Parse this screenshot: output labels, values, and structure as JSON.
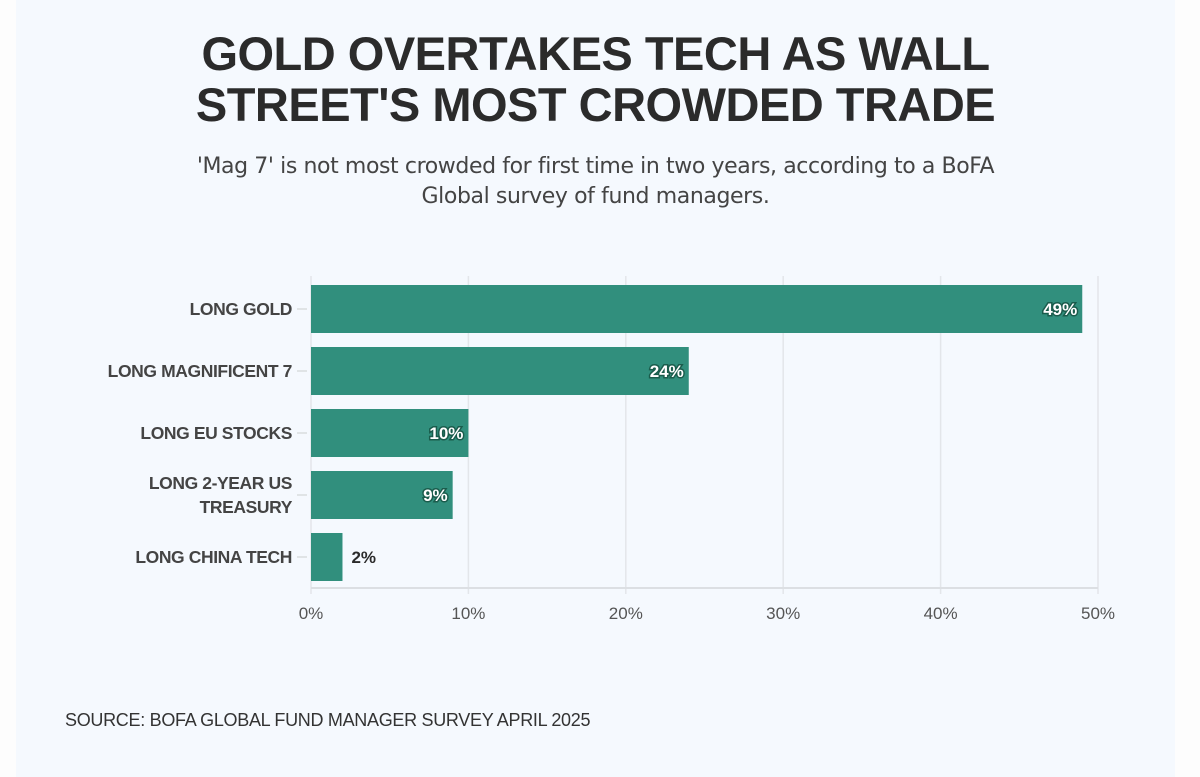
{
  "header": {
    "title_line1": "GOLD OVERTAKES TECH AS WALL",
    "title_line2": "STREET'S MOST CROWDED TRADE",
    "subtitle_line1": "'Mag 7' is not most crowded for first time in two years, according to a BoFA",
    "subtitle_line2": "Global survey of fund managers."
  },
  "footer": {
    "source": "SOURCE: BOFA GLOBAL FUND MANAGER SURVEY APRIL 2025"
  },
  "colors": {
    "bar": "#318f7d",
    "background": "#f5f9fe",
    "grid": "#e3e6ea",
    "text": "#2b2b2b"
  },
  "chart_data": {
    "type": "bar",
    "orientation": "horizontal",
    "title": "GOLD OVERTAKES TECH AS WALL STREET'S MOST CROWDED TRADE",
    "subtitle": "'Mag 7' is not most crowded for first time in two years, according to a BoFA Global survey of fund managers.",
    "categories": [
      [
        "LONG GOLD"
      ],
      [
        "LONG MAGNIFICENT 7"
      ],
      [
        "LONG EU STOCKS"
      ],
      [
        "LONG 2-YEAR US",
        "TREASURY"
      ],
      [
        "LONG CHINA TECH"
      ]
    ],
    "values": [
      49,
      24,
      10,
      9,
      2
    ],
    "value_labels": [
      "49%",
      "24%",
      "10%",
      "9%",
      "2%"
    ],
    "xlabel": "",
    "ylabel": "",
    "xlim": [
      0,
      50
    ],
    "xticks": [
      0,
      10,
      20,
      30,
      40,
      50
    ],
    "xtick_labels": [
      "0%",
      "10%",
      "20%",
      "30%",
      "40%",
      "50%"
    ],
    "grid": "vertical",
    "legend": "none",
    "source": "SOURCE: BOFA GLOBAL FUND MANAGER SURVEY APRIL 2025"
  }
}
